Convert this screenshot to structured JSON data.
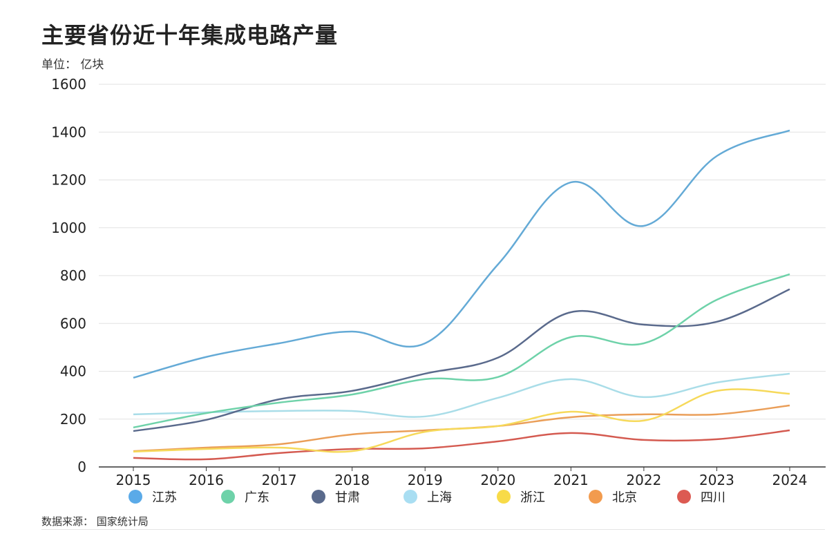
{
  "chart_data": {
    "type": "line",
    "title": "主要省份近十年集成电路产量",
    "unit_label": "单位： 亿块",
    "source": "数据来源： 国家统计局",
    "categories": [
      "2015",
      "2016",
      "2017",
      "2018",
      "2019",
      "2020",
      "2021",
      "2022",
      "2023",
      "2024"
    ],
    "ylim": [
      0,
      1600
    ],
    "yticks": [
      0,
      200,
      400,
      600,
      800,
      1000,
      1200,
      1400,
      1600
    ],
    "grid": true,
    "legend_position": "bottom",
    "smooth": true,
    "series": [
      {
        "name": "江苏",
        "color": "#64aad6",
        "legend_color": "#5aaae8",
        "values": [
          373,
          460,
          517,
          566,
          517,
          847,
          1190,
          1008,
          1300,
          1407
        ]
      },
      {
        "name": "广东",
        "color": "#6ed2a9",
        "legend_color": "#6ed2a9",
        "values": [
          165,
          225,
          269,
          303,
          367,
          376,
          543,
          517,
          699,
          806
        ]
      },
      {
        "name": "甘肃",
        "color": "#5a6a8c",
        "legend_color": "#5a6a8c",
        "values": [
          150,
          197,
          283,
          318,
          390,
          457,
          647,
          595,
          607,
          743
        ]
      },
      {
        "name": "上海",
        "color": "#a9dde8",
        "legend_color": "#a9def2",
        "values": [
          220,
          228,
          234,
          234,
          211,
          289,
          367,
          292,
          353,
          390
        ]
      },
      {
        "name": "浙江",
        "color": "#f6d95a",
        "legend_color": "#f8db48",
        "values": [
          64,
          75,
          81,
          66,
          147,
          171,
          231,
          194,
          318,
          306
        ]
      },
      {
        "name": "北京",
        "color": "#ea9e58",
        "legend_color": "#f29b4e",
        "values": [
          66,
          81,
          95,
          136,
          153,
          171,
          208,
          220,
          220,
          257
        ]
      },
      {
        "name": "四川",
        "color": "#d45a50",
        "legend_color": "#dc5a52",
        "values": [
          38,
          32,
          58,
          75,
          78,
          107,
          142,
          113,
          116,
          153
        ]
      }
    ]
  }
}
